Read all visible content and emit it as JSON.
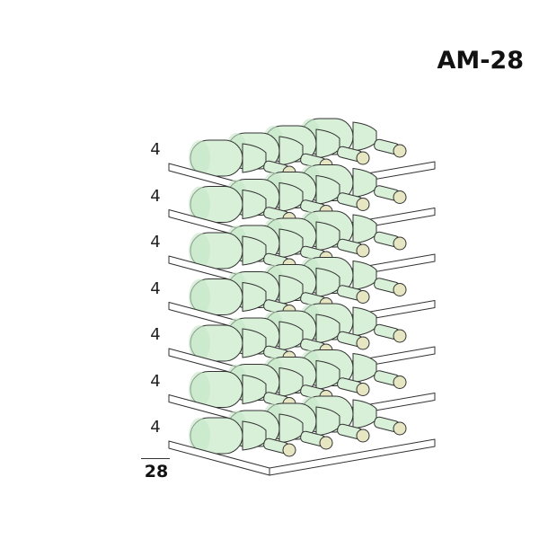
{
  "title": "AM-28",
  "rows": [
    {
      "label": "4",
      "bottles": 4
    },
    {
      "label": "4",
      "bottles": 4
    },
    {
      "label": "4",
      "bottles": 4
    },
    {
      "label": "4",
      "bottles": 4
    },
    {
      "label": "4",
      "bottles": 4
    },
    {
      "label": "4",
      "bottles": 4
    },
    {
      "label": "4",
      "bottles": 4
    }
  ],
  "total": "28",
  "colors": {
    "bottle": "#d8efd8",
    "bottle_shade": "#c5e6c6",
    "cork": "#e6e6c2",
    "outline": "#333333",
    "shelf": "#ffffff"
  }
}
